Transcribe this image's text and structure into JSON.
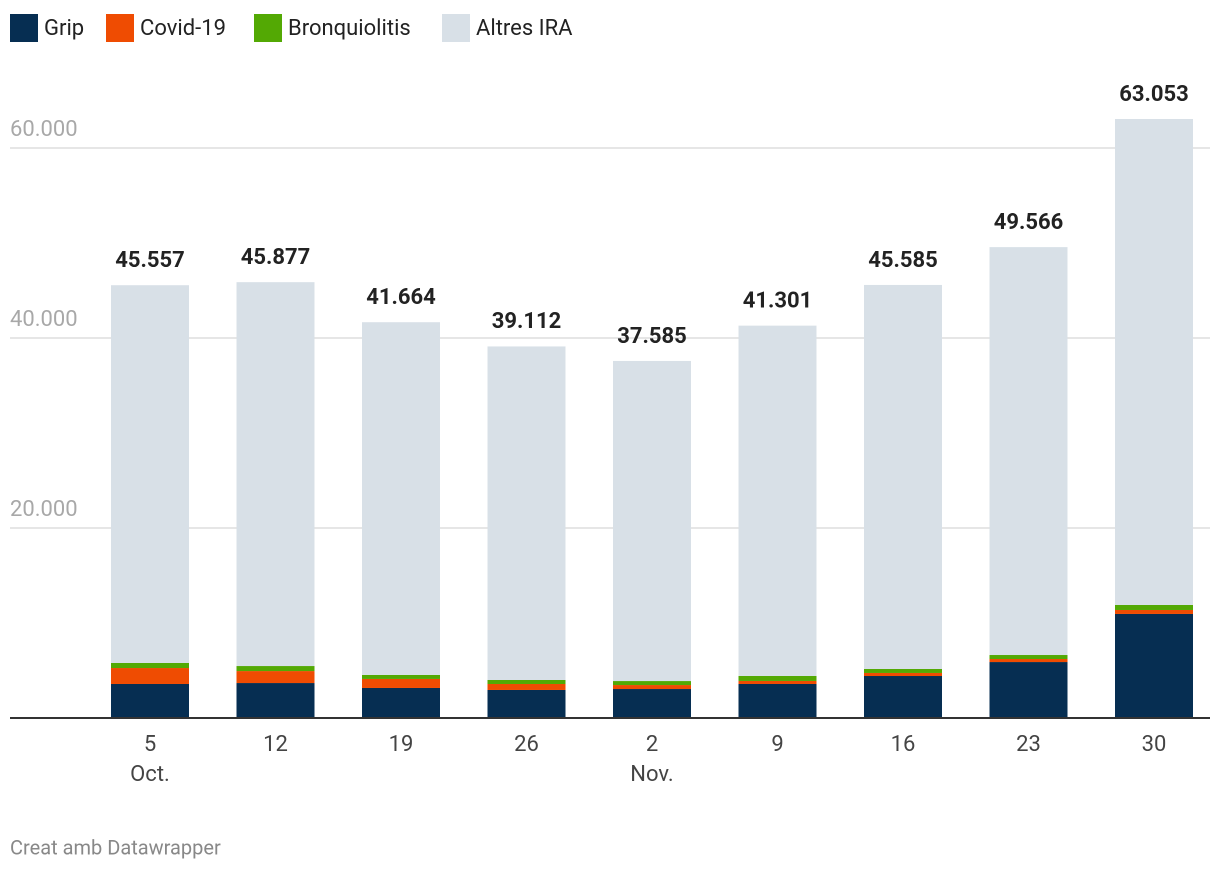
{
  "chart_data": {
    "type": "stacked-bar",
    "categories": [
      "5",
      "12",
      "19",
      "26",
      "2",
      "9",
      "16",
      "23",
      "30"
    ],
    "months": [
      "Oct.",
      null,
      null,
      null,
      "Nov.",
      null,
      null,
      null,
      null
    ],
    "series": [
      {
        "name": "Grip",
        "color": "#062e52",
        "values": [
          3580,
          3680,
          3160,
          2950,
          3050,
          3580,
          4420,
          5890,
          10950
        ]
      },
      {
        "name": "Covid-19",
        "color": "#ef4c02",
        "values": [
          1680,
          1260,
          950,
          630,
          420,
          320,
          320,
          320,
          420
        ]
      },
      {
        "name": "Bronquiolitis",
        "color": "#53a904",
        "values": [
          530,
          530,
          420,
          420,
          420,
          530,
          420,
          420,
          530
        ]
      },
      {
        "name": "Altres IRA",
        "color": "#d8e0e7",
        "values": [
          39767,
          40407,
          37134,
          35112,
          33695,
          36871,
          40425,
          42936,
          51153
        ]
      }
    ],
    "totals": {
      "values": [
        45557,
        45877,
        41664,
        39112,
        37585,
        41301,
        45585,
        49566,
        63053
      ],
      "value_labels": [
        "45.557",
        "45.877",
        "41.664",
        "39.112",
        "37.585",
        "41.301",
        "45.585",
        "49.566",
        "63.053"
      ]
    },
    "ylim": [
      0,
      66000
    ],
    "yticks": [
      {
        "value": 20000,
        "label": "20.000"
      },
      {
        "value": 40000,
        "label": "40.000"
      },
      {
        "value": 60000,
        "label": "60.000"
      }
    ],
    "grid": true,
    "legend": "top-left",
    "footer": "Creat amb Datawrapper"
  }
}
